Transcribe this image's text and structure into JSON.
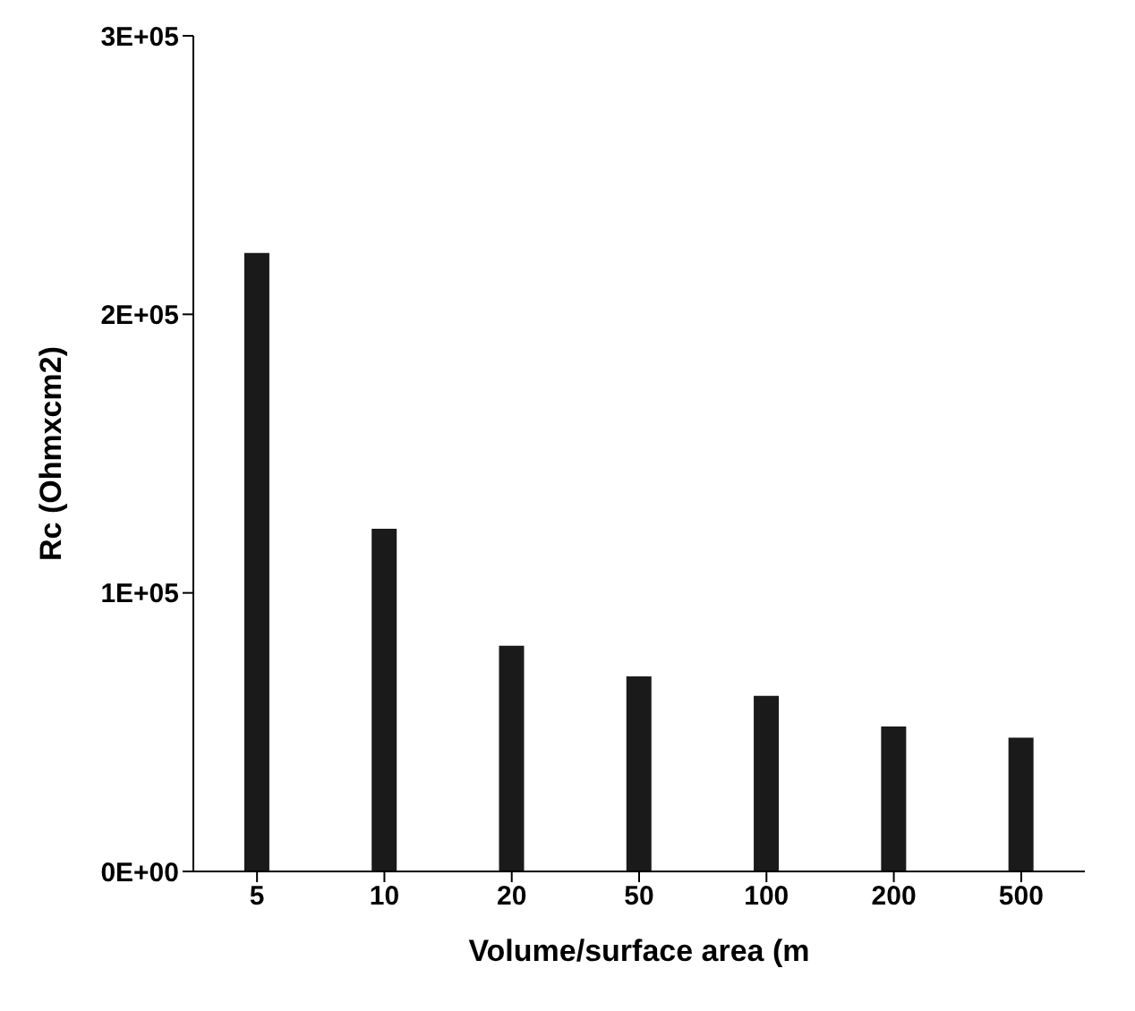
{
  "chart_data": {
    "type": "bar",
    "ylabel": "Rc (Ohmxcm2)",
    "xlabel": "Volume/surface area (m",
    "categories": [
      "5",
      "10",
      "20",
      "50",
      "100",
      "200",
      "500"
    ],
    "values": [
      222000,
      123000,
      81000,
      70000,
      63000,
      52000,
      48000
    ],
    "color": "#1a1a1a",
    "ylim": [
      0,
      300000
    ],
    "yticks": [
      {
        "value": 0,
        "label": "0E+00"
      },
      {
        "value": 100000,
        "label": "1E+05"
      },
      {
        "value": 200000,
        "label": "2E+05"
      },
      {
        "value": 300000,
        "label": "3E+05"
      }
    ],
    "grid": false
  }
}
